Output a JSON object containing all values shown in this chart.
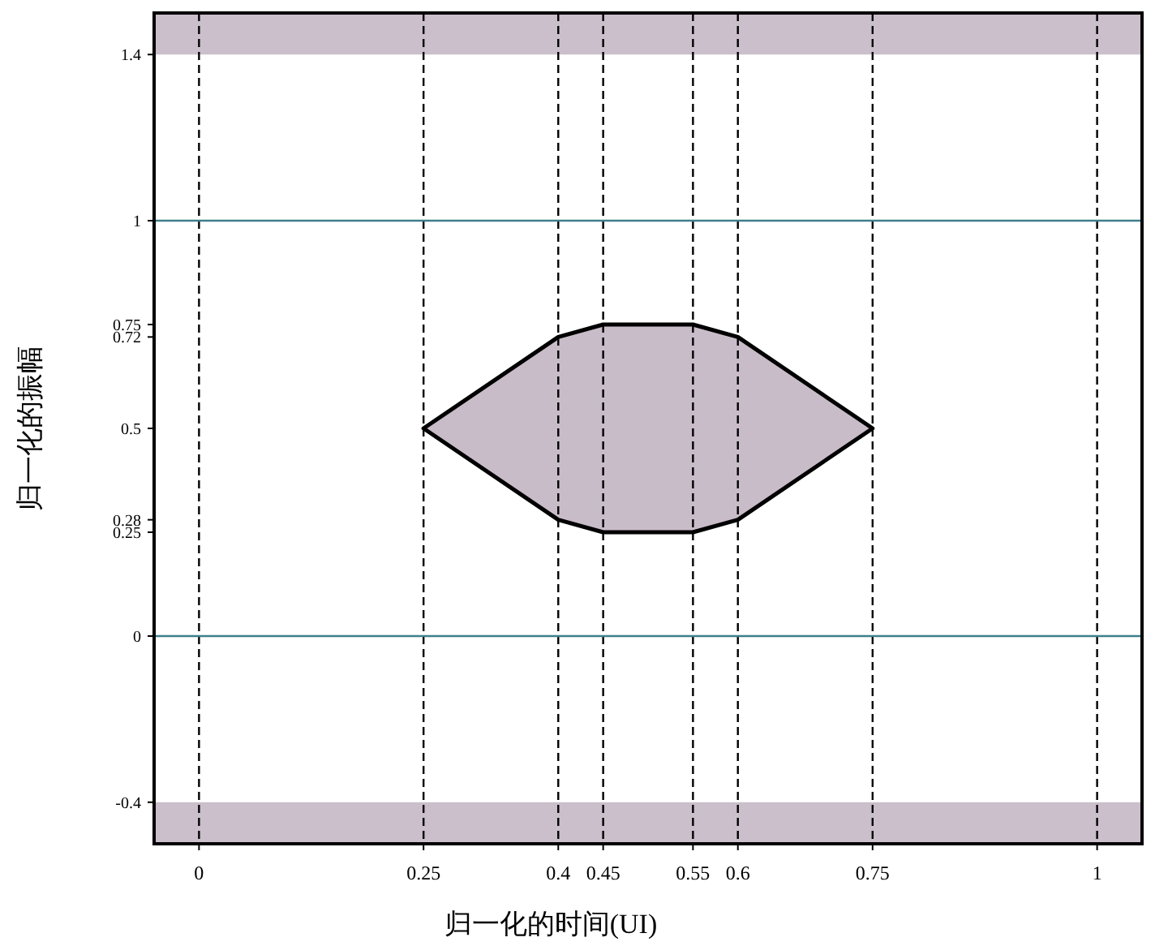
{
  "chart_data": {
    "type": "area",
    "xlabel": "归一化的时间(UI)",
    "ylabel": "归一化的振幅",
    "xlim": [
      -0.05,
      1.05
    ],
    "ylim": [
      -0.5,
      1.5
    ],
    "xticks": [
      0,
      0.25,
      0.4,
      0.45,
      0.55,
      0.6,
      0.75,
      1
    ],
    "yticks": [
      -0.4,
      0,
      0.25,
      0.28,
      0.5,
      0.72,
      0.75,
      1,
      1.4
    ],
    "grid": "x",
    "line_style": "solid",
    "series": [
      {
        "type": "area",
        "color": "#c9bcc9",
        "x": [
          0.25,
          0.4,
          0.45,
          0.55,
          0.6,
          0.75,
          0.6,
          0.55,
          0.45,
          0.4
        ],
        "values": [
          0.5,
          0.72,
          0.75,
          0.75,
          0.72,
          0.5,
          0.28,
          0.25,
          0.25,
          0.28
        ]
      }
    ],
    "bands": [
      {
        "axis": "y",
        "from": 1.4,
        "to": 1.5,
        "color": "#cbbfcb"
      },
      {
        "axis": "y",
        "from": -0.5,
        "to": -0.4,
        "color": "#cbbfcb"
      }
    ],
    "ref_lines": [
      {
        "axis": "y",
        "value": 1,
        "color": "#3f7f8c",
        "line_style": "solid"
      },
      {
        "axis": "y",
        "value": 0,
        "color": "#3f7f8c",
        "line_style": "solid"
      }
    ]
  }
}
